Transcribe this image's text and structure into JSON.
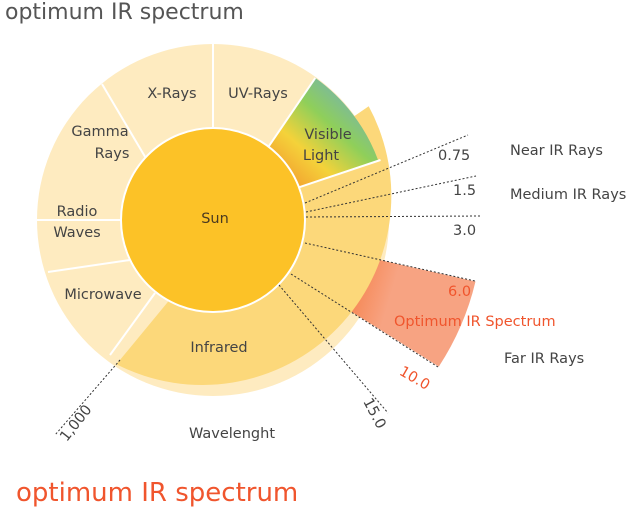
{
  "header": {
    "title": "optimum IR spectrum"
  },
  "footer": {
    "title": "optimum IR spectrum"
  },
  "diagram": {
    "center": "Sun",
    "segments": {
      "x_rays": "X-Rays",
      "uv_rays": "UV-Rays",
      "visible_1": "Visible",
      "visible_2": "Light",
      "gamma_1": "Gamma",
      "gamma_2": "Rays",
      "radio_1": "Radio",
      "radio_2": "Waves",
      "microwave": "Microwave",
      "infrared": "Infrared"
    },
    "ir_bands": {
      "near": "Near IR Rays",
      "medium": "Medium IR Rays",
      "far": "Far IR Rays",
      "optimum": "Optimum IR Spectrum"
    },
    "wavelength_ticks": {
      "t1": "0.75",
      "t2": "1.5",
      "t3": "3.0",
      "t4": "6.0",
      "t5": "10.0",
      "t6": "15.0",
      "t7": "1,000"
    },
    "axis_label": "Wavelenght"
  },
  "colors": {
    "sun": "#fcc227",
    "infrared": "#fcd87a",
    "outer_segments": "#feebc0",
    "optimum_band": "#f7a382",
    "accent_text": "#f0552d"
  }
}
